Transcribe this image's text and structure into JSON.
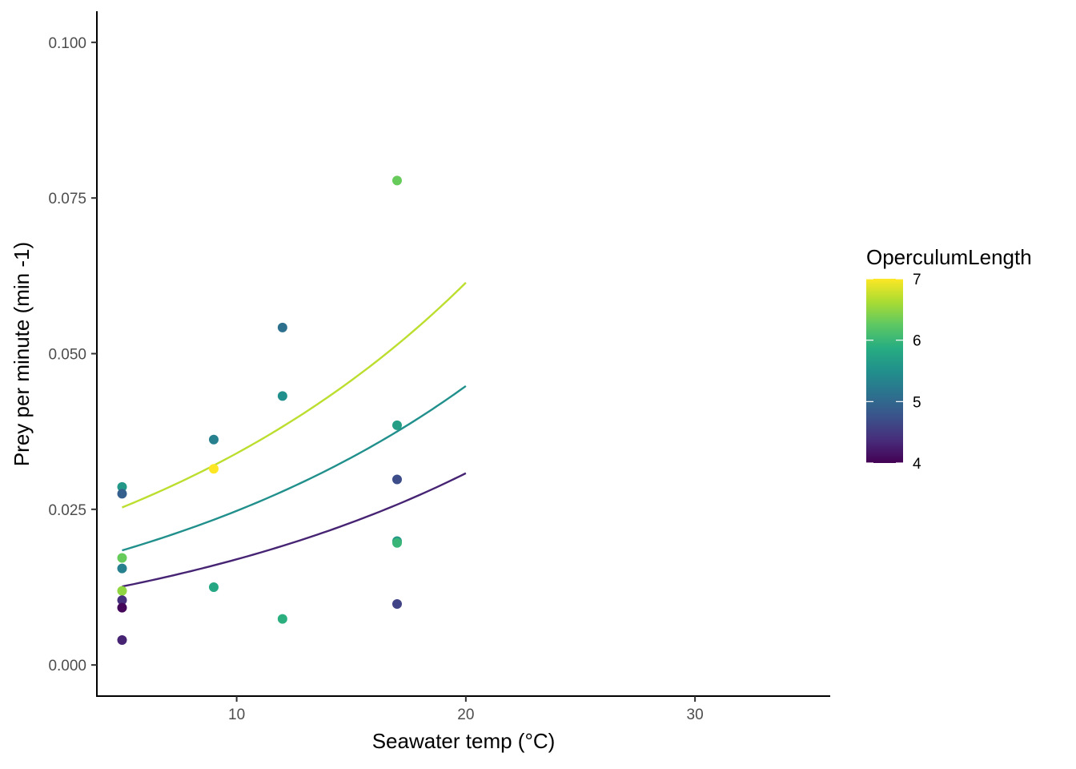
{
  "chart_data": {
    "type": "scatter",
    "title": "",
    "xlabel": "Seawater temp (°C)",
    "ylabel": "Prey per minute (min -1)",
    "xlim": [
      3.9,
      35.9
    ],
    "ylim": [
      -0.005,
      0.105
    ],
    "x_ticks": [
      10,
      20,
      30
    ],
    "x_tick_labels": [
      "10",
      "20",
      "30"
    ],
    "y_ticks": [
      0,
      0.025,
      0.05,
      0.075,
      0.1
    ],
    "y_tick_labels": [
      "0.000",
      "0.025",
      "0.050",
      "0.075",
      "0.100"
    ],
    "grid": false,
    "legend": {
      "title": "OperculumLength",
      "placement": "right",
      "type": "colorbar",
      "range": [
        4,
        7
      ],
      "ticks": [
        4,
        5,
        6,
        7
      ],
      "tick_labels": [
        "4",
        "5",
        "6",
        "7"
      ],
      "palette": "viridis"
    },
    "colors": {
      "viridis": [
        "#440154",
        "#472D7B",
        "#3B528B",
        "#2C728E",
        "#21908C",
        "#27AD81",
        "#5DC863",
        "#AADC32",
        "#FDE725"
      ]
    },
    "points": [
      {
        "x": 5,
        "y": 0.0286,
        "operculum_length": 5.6
      },
      {
        "x": 5,
        "y": 0.0275,
        "operculum_length": 4.9
      },
      {
        "x": 5,
        "y": 0.0172,
        "operculum_length": 6.3
      },
      {
        "x": 5,
        "y": 0.0155,
        "operculum_length": 5.3
      },
      {
        "x": 5,
        "y": 0.0119,
        "operculum_length": 6.5
      },
      {
        "x": 5,
        "y": 0.0104,
        "operculum_length": 4.4
      },
      {
        "x": 5,
        "y": 0.0092,
        "operculum_length": 4.05
      },
      {
        "x": 5,
        "y": 0.004,
        "operculum_length": 4.3
      },
      {
        "x": 9,
        "y": 0.0362,
        "operculum_length": 5.3
      },
      {
        "x": 9,
        "y": 0.0315,
        "operculum_length": 7.0
      },
      {
        "x": 9,
        "y": 0.0125,
        "operculum_length": 5.8
      },
      {
        "x": 12,
        "y": 0.0542,
        "operculum_length": 5.1
      },
      {
        "x": 12,
        "y": 0.0432,
        "operculum_length": 5.5
      },
      {
        "x": 12,
        "y": 0.0074,
        "operculum_length": 5.9
      },
      {
        "x": 17,
        "y": 0.0778,
        "operculum_length": 6.3
      },
      {
        "x": 17,
        "y": 0.0385,
        "operculum_length": 5.7
      },
      {
        "x": 17,
        "y": 0.0298,
        "operculum_length": 4.7
      },
      {
        "x": 17,
        "y": 0.0199,
        "operculum_length": 5.6
      },
      {
        "x": 17,
        "y": 0.0196,
        "operculum_length": 6.0
      },
      {
        "x": 17,
        "y": 0.0098,
        "operculum_length": 4.6
      }
    ],
    "series": [
      {
        "operculum_length": 6.7,
        "x": [
          5,
          20
        ],
        "y": [
          0.0253,
          0.0614
        ]
      },
      {
        "operculum_length": 5.5,
        "x": [
          5,
          20
        ],
        "y": [
          0.0184,
          0.0448
        ]
      },
      {
        "operculum_length": 4.3,
        "x": [
          5,
          20
        ],
        "y": [
          0.0126,
          0.0308
        ]
      }
    ]
  }
}
